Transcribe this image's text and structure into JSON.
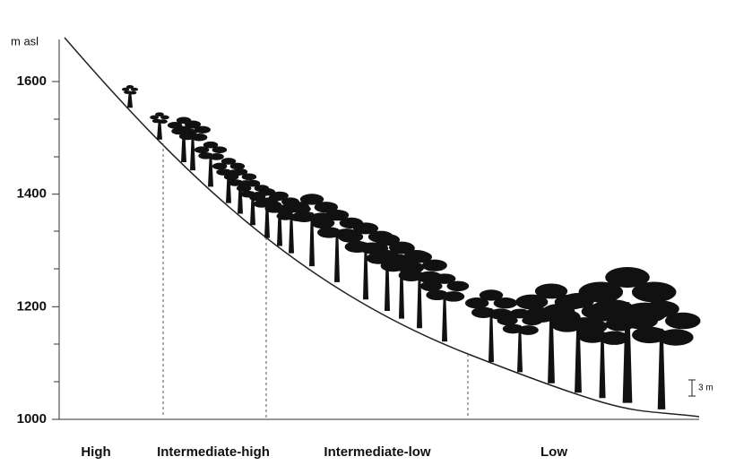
{
  "axis": {
    "unit": "m asl",
    "ticks": [
      1000,
      1200,
      1400,
      1600
    ]
  },
  "zones": [
    "High",
    "Intermediate-high",
    "Intermediate-low",
    "Low"
  ],
  "scale_bar": "3 m"
}
